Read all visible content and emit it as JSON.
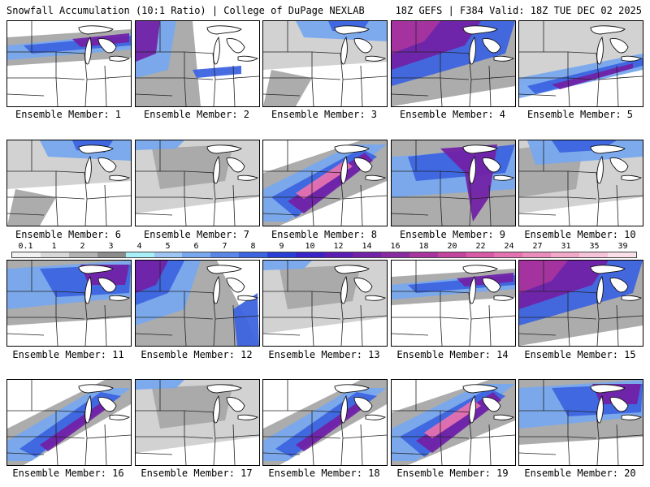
{
  "header": {
    "left": "Snowfall Accumulation (10:1 Ratio) | College of DuPage NEXLAB",
    "right": "18Z GEFS | F384 Valid: 18Z TUE DEC 02 2025"
  },
  "panels": [
    {
      "label": "Ensemble Member: 1",
      "pattern": "band"
    },
    {
      "label": "Ensemble Member: 2",
      "pattern": "west"
    },
    {
      "label": "Ensemble Member: 3",
      "pattern": "north"
    },
    {
      "label": "Ensemble Member: 4",
      "pattern": "heavy-nw"
    },
    {
      "label": "Ensemble Member: 5",
      "pattern": "south-band"
    },
    {
      "label": "Ensemble Member: 6",
      "pattern": "north"
    },
    {
      "label": "Ensemble Member: 7",
      "pattern": "light"
    },
    {
      "label": "Ensemble Member: 8",
      "pattern": "diag-heavy"
    },
    {
      "label": "Ensemble Member: 9",
      "pattern": "streaks"
    },
    {
      "label": "Ensemble Member: 10",
      "pattern": "west-light"
    },
    {
      "label": "Ensemble Member: 11",
      "pattern": "lakes"
    },
    {
      "label": "Ensemble Member: 12",
      "pattern": "nw-heavy"
    },
    {
      "label": "Ensemble Member: 13",
      "pattern": "light"
    },
    {
      "label": "Ensemble Member: 14",
      "pattern": "band"
    },
    {
      "label": "Ensemble Member: 15",
      "pattern": "heavy-nw"
    },
    {
      "label": "Ensemble Member: 16",
      "pattern": "diag"
    },
    {
      "label": "Ensemble Member: 17",
      "pattern": "light"
    },
    {
      "label": "Ensemble Member: 18",
      "pattern": "diag"
    },
    {
      "label": "Ensemble Member: 19",
      "pattern": "diag-heavy"
    },
    {
      "label": "Ensemble Member: 20",
      "pattern": "lakes"
    }
  ],
  "colorbar": {
    "labels": [
      "0.1",
      "1",
      "2",
      "3",
      "4",
      "5",
      "6",
      "7",
      "8",
      "9",
      "10",
      "12",
      "14",
      "16",
      "18",
      "20",
      "22",
      "24",
      "27",
      "31",
      "35",
      "39"
    ],
    "colors": [
      "#f2f2f2",
      "#d9d9d9",
      "#b3b3b3",
      "#8c8c8c",
      "#a8f0f8",
      "#9ec6f2",
      "#78a8ee",
      "#5a86e8",
      "#3d64e0",
      "#2a3ed6",
      "#3a22c8",
      "#5a1eb4",
      "#7222a6",
      "#8a2aa0",
      "#a8349e",
      "#c2449e",
      "#d85aa6",
      "#e472b0",
      "#ec8cbc",
      "#f2a8c8",
      "#f6c4d8",
      "#fae0e8"
    ]
  }
}
